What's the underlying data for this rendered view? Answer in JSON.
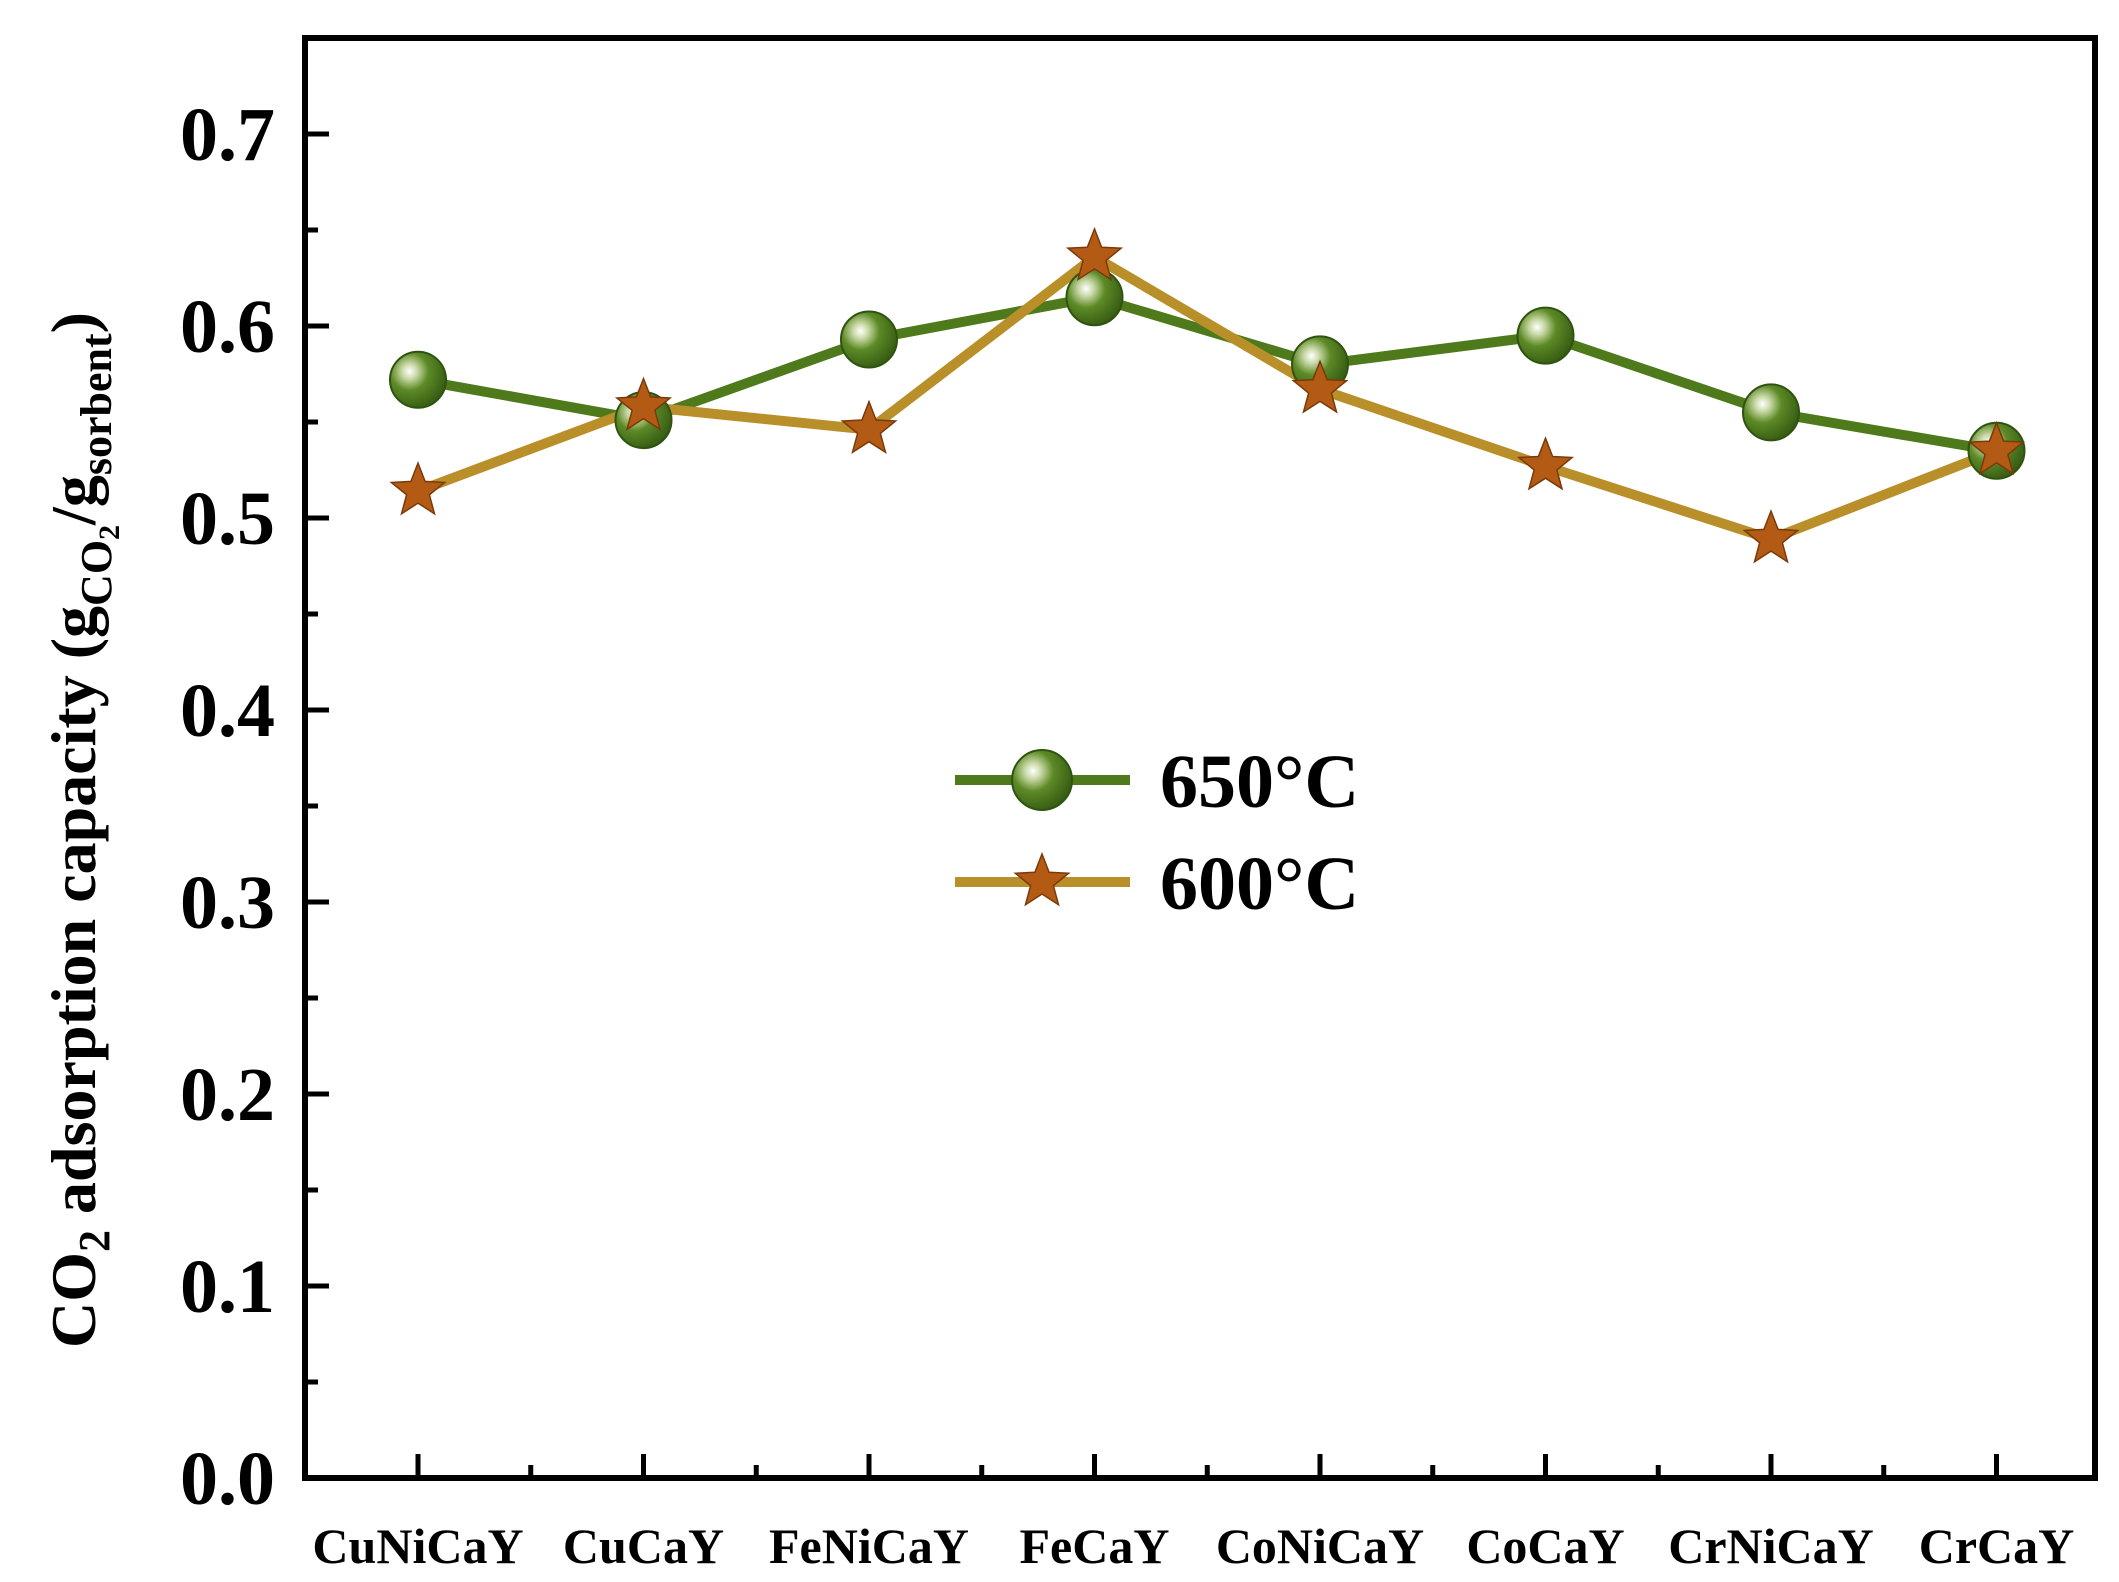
{
  "chart_data": {
    "type": "line",
    "title": "",
    "xlabel": "",
    "ylabel": {
      "main": "CO",
      "main_sub": "2",
      "rest": " adsorption capacity (g",
      "sub1": "CO",
      "sub1_sub": "2",
      "slash": "/g",
      "sub2": "sorbent",
      "close": ")"
    },
    "ylim": [
      0.0,
      0.75
    ],
    "yticks": [
      0.0,
      0.1,
      0.2,
      0.3,
      0.4,
      0.5,
      0.6,
      0.7
    ],
    "ytick_labels": [
      "0.0",
      "0.1",
      "0.2",
      "0.3",
      "0.4",
      "0.5",
      "0.6",
      "0.7"
    ],
    "categories": [
      "CuNiCaY",
      "CuCaY",
      "FeNiCaY",
      "FeCaY",
      "CoNiCaY",
      "CoCaY",
      "CrNiCaY",
      "CrCaY"
    ],
    "series": [
      {
        "name": "650°C",
        "marker": "sphere",
        "color": "#4e7a1c",
        "values": [
          0.572,
          0.551,
          0.593,
          0.615,
          0.58,
          0.595,
          0.555,
          0.535
        ]
      },
      {
        "name": "600°C",
        "marker": "star",
        "line_color": "#b98f2a",
        "marker_color": "#b35a14",
        "values": [
          0.514,
          0.558,
          0.546,
          0.636,
          0.567,
          0.527,
          0.489,
          0.535
        ]
      }
    ],
    "grid": false,
    "legend_position": "center"
  }
}
